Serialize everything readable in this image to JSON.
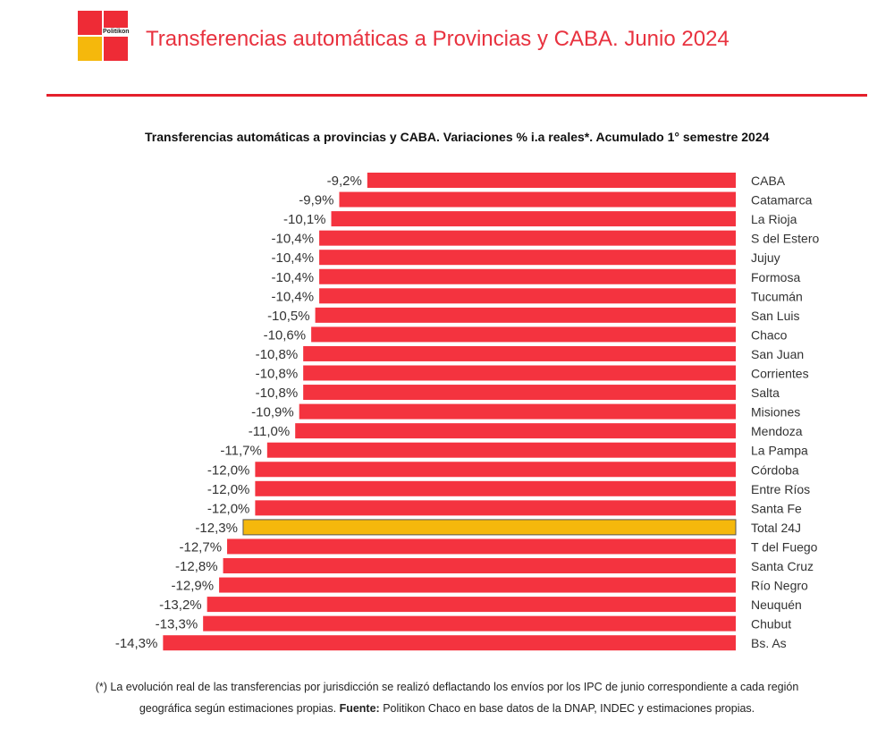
{
  "header": {
    "brand": "Politikon",
    "title": "Transferencias automáticas a Provincias y CABA. Junio 2024"
  },
  "chart_data": {
    "type": "bar",
    "orientation": "horizontal",
    "title": "Transferencias automáticas a provincias y CABA. Variaciones % i.a reales*. Acumulado 1° semestre 2024",
    "categories": [
      "CABA",
      "Catamarca",
      "La Rioja",
      "S del Estero",
      "Jujuy",
      "Formosa",
      "Tucumán",
      "San Luis",
      "Chaco",
      "San Juan",
      "Corrientes",
      "Salta",
      "Misiones",
      "Mendoza",
      "La Pampa",
      "Córdoba",
      "Entre Ríos",
      "Santa Fe",
      "Total 24J",
      "T del Fuego",
      "Santa Cruz",
      "Río Negro",
      "Neuquén",
      "Chubut",
      "Bs. As"
    ],
    "values": [
      -9.2,
      -9.9,
      -10.1,
      -10.4,
      -10.4,
      -10.4,
      -10.4,
      -10.5,
      -10.6,
      -10.8,
      -10.8,
      -10.8,
      -10.9,
      -11.0,
      -11.7,
      -12.0,
      -12.0,
      -12.0,
      -12.3,
      -12.7,
      -12.8,
      -12.9,
      -13.2,
      -13.3,
      -14.3
    ],
    "value_labels": [
      "-9,2%",
      "-9,9%",
      "-10,1%",
      "-10,4%",
      "-10,4%",
      "-10,4%",
      "-10,4%",
      "-10,5%",
      "-10,6%",
      "-10,8%",
      "-10,8%",
      "-10,8%",
      "-10,9%",
      "-11,0%",
      "-11,7%",
      "-12,0%",
      "-12,0%",
      "-12,0%",
      "-12,3%",
      "-12,7%",
      "-12,8%",
      "-12,9%",
      "-13,2%",
      "-13,3%",
      "-14,3%"
    ],
    "highlight_category": "Total 24J",
    "colors": {
      "bar": "#f4333f",
      "highlight": "#f5b80c",
      "outline": "#555555"
    },
    "grid": false,
    "legend": "none"
  },
  "footnote": {
    "line1": "(*) La evolución real de las transferencias por jurisdicción se realizó deflactando los envíos por los IPC de junio correspondiente a cada región",
    "line2_pre": "geográfica según estimaciones propias.",
    "source_label": "Fuente:",
    "source_text": "Politikon Chaco en base datos de la DNAP, INDEC y estimaciones propias."
  }
}
